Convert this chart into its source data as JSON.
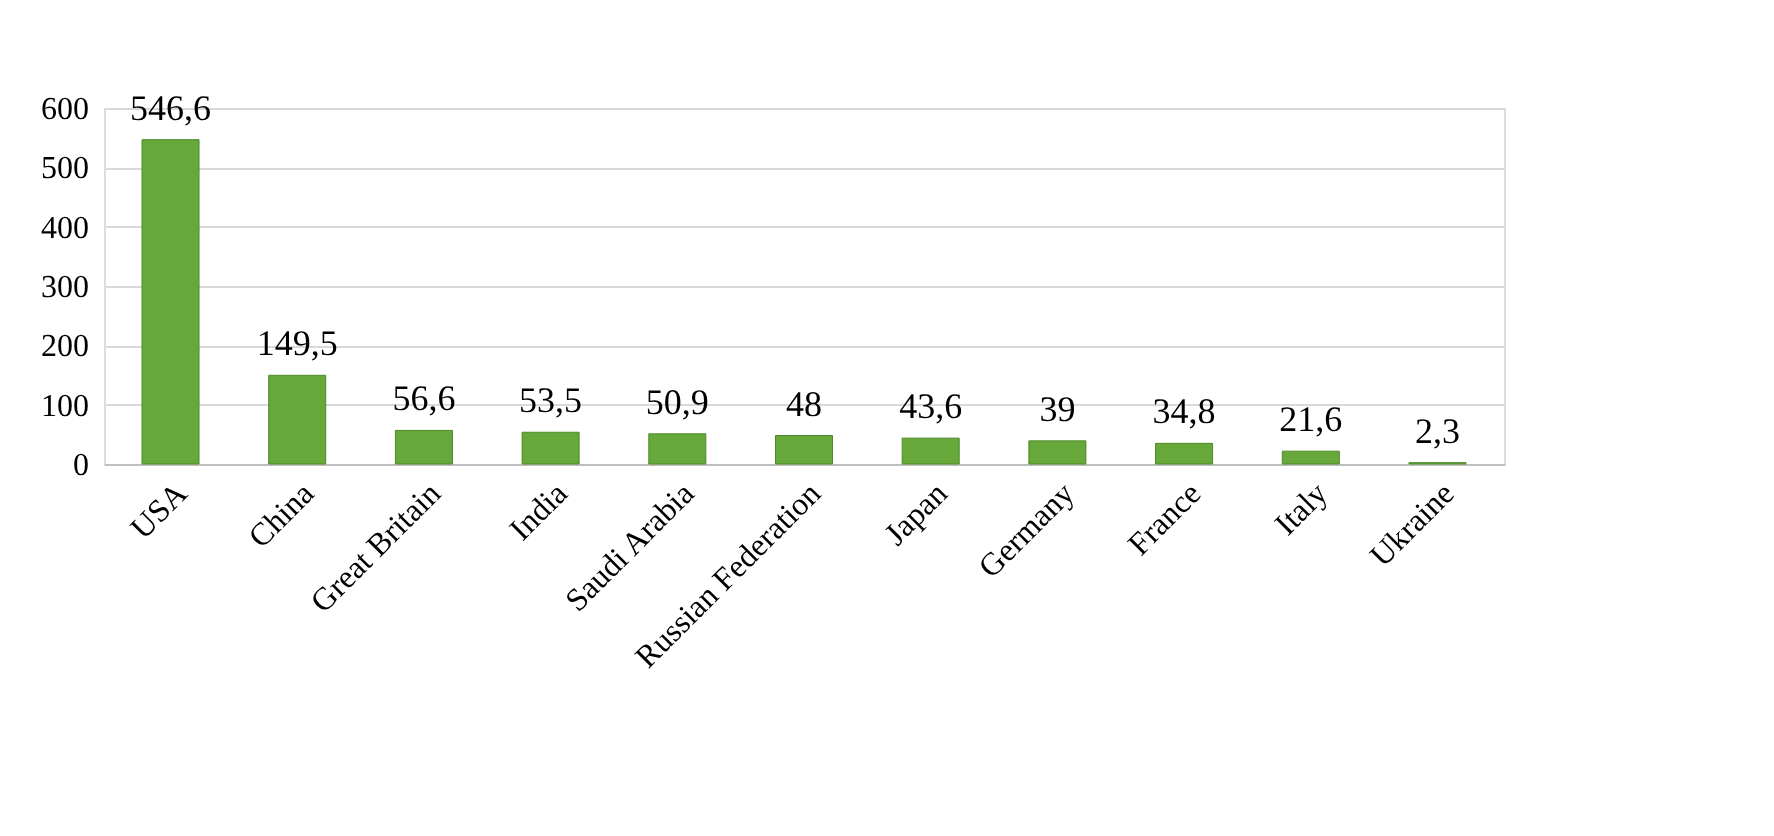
{
  "chart_data": {
    "type": "bar",
    "categories": [
      "USA",
      "China",
      "Great Britain",
      "India",
      "Saudi Arabia",
      "Russian Federation",
      "Japan",
      "Germany",
      "France",
      "Italy",
      "Ukraine"
    ],
    "values": [
      546.6,
      149.5,
      56.6,
      53.5,
      50.9,
      48,
      43.6,
      39,
      34.8,
      21.6,
      2.3
    ],
    "value_labels": [
      "546,6",
      "149,5",
      "56,6",
      "53,5",
      "50,9",
      "48",
      "43,6",
      "39",
      "34,8",
      "21,6",
      "2,3"
    ],
    "color": "#66a83a",
    "ylim": [
      0,
      600
    ],
    "yticks": [
      0,
      100,
      200,
      300,
      400,
      500,
      600
    ],
    "grid": "y"
  }
}
